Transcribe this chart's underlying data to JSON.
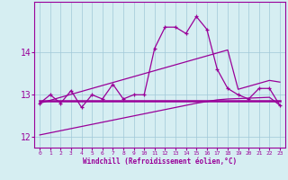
{
  "xlabel": "Windchill (Refroidissement éolien,°C)",
  "background_color": "#d6eef2",
  "grid_color": "#a0c8d8",
  "line_color": "#990099",
  "x": [
    0,
    1,
    2,
    3,
    4,
    5,
    6,
    7,
    8,
    9,
    10,
    11,
    12,
    13,
    14,
    15,
    16,
    17,
    18,
    19,
    20,
    21,
    22,
    23
  ],
  "y_main": [
    12.8,
    13.0,
    12.8,
    13.1,
    12.7,
    13.0,
    12.9,
    13.25,
    12.9,
    13.0,
    13.0,
    14.1,
    14.6,
    14.6,
    14.45,
    14.85,
    14.55,
    13.6,
    13.15,
    13.0,
    12.9,
    13.15,
    13.15,
    12.75
  ],
  "y_trend1": [
    12.8,
    12.87,
    12.94,
    13.01,
    13.08,
    13.15,
    13.22,
    13.29,
    13.36,
    13.43,
    13.5,
    13.57,
    13.64,
    13.71,
    13.78,
    13.85,
    13.92,
    13.99,
    14.06,
    13.13,
    13.2,
    13.27,
    13.34,
    13.3
  ],
  "y_trend2": [
    12.85,
    12.85,
    12.85,
    12.85,
    12.85,
    12.85,
    12.85,
    12.85,
    12.85,
    12.85,
    12.85,
    12.85,
    12.85,
    12.85,
    12.85,
    12.85,
    12.85,
    12.85,
    12.85,
    12.85,
    12.85,
    12.85,
    12.85,
    12.85
  ],
  "y_trend3": [
    12.05,
    12.1,
    12.15,
    12.2,
    12.25,
    12.3,
    12.35,
    12.4,
    12.45,
    12.5,
    12.55,
    12.6,
    12.65,
    12.7,
    12.75,
    12.8,
    12.84,
    12.88,
    12.9,
    12.91,
    12.92,
    12.93,
    12.94,
    12.75
  ],
  "ylim": [
    11.75,
    15.2
  ],
  "yticks": [
    12,
    13,
    14
  ],
  "xticks": [
    0,
    1,
    2,
    3,
    4,
    5,
    6,
    7,
    8,
    9,
    10,
    11,
    12,
    13,
    14,
    15,
    16,
    17,
    18,
    19,
    20,
    21,
    22,
    23
  ]
}
